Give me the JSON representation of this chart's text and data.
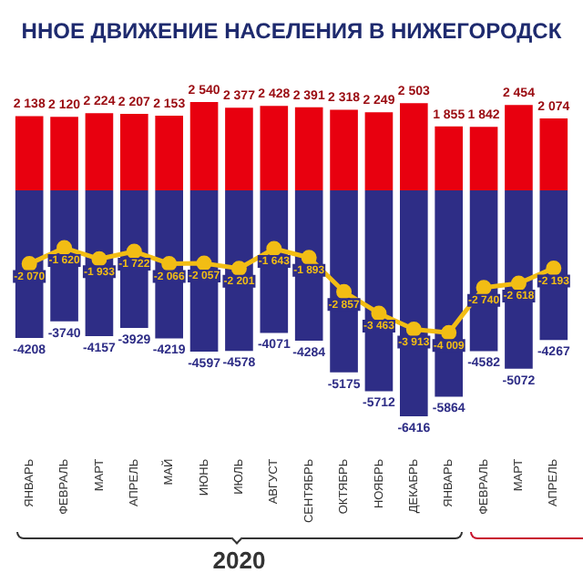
{
  "chart_data": {
    "type": "bar",
    "title": "ННОЕ ДВИЖЕНИЕ НАСЕЛЕНИЯ В НИЖЕГОРОДСК",
    "stacked": true,
    "grid": false,
    "legend": false,
    "tick_labels": "x",
    "marker": "circle",
    "categories": [
      "ЯНВАРЬ",
      "ФЕВРАЛЬ",
      "МАРТ",
      "АПРЕЛЬ",
      "МАЙ",
      "ИЮНЬ",
      "ИЮЛЬ",
      "АВГУСТ",
      "СЕНТЯБРЬ",
      "ОКТЯБРЬ",
      "НОЯБРЬ",
      "ДЕКАБРЬ",
      "ЯНВАРЬ",
      "ФЕВРАЛЬ",
      "МАРТ",
      "АПРЕЛЬ"
    ],
    "series": [
      {
        "type": "bar",
        "color": "#e8000f",
        "values": [
          2138,
          2120,
          2224,
          2207,
          2153,
          2540,
          2377,
          2428,
          2391,
          2318,
          2249,
          2503,
          1855,
          1842,
          2454,
          2074
        ],
        "value_labels": [
          "2 138",
          "2 120",
          "2 224",
          "2 207",
          "2 153",
          "2 540",
          "2 377",
          "2 428",
          "2 391",
          "2 318",
          "2 249",
          "2 503",
          "1 855",
          "1 842",
          "2 454",
          "2 074"
        ]
      },
      {
        "type": "bar",
        "color": "#2e2d86",
        "values": [
          -4208,
          -3740,
          -4157,
          -3929,
          -4219,
          -4597,
          -4578,
          -4071,
          -4284,
          -5175,
          -5712,
          -6416,
          -5864,
          -4582,
          -5072,
          -4267
        ],
        "value_labels": [
          "-4208",
          "-3740",
          "-4157",
          "-3929",
          "-4219",
          "-4597",
          "-4578",
          "-4071",
          "-4284",
          "-5175",
          "-5712",
          "-6416",
          "-5864",
          "-4582",
          "-5072",
          "-4267"
        ]
      },
      {
        "type": "line",
        "color": "#f2bd14",
        "values": [
          -2070,
          -1620,
          -1933,
          -1722,
          -2066,
          -2057,
          -2201,
          -1643,
          -1893,
          -2857,
          -3463,
          -3913,
          -4009,
          -2740,
          -2618,
          -2193
        ],
        "value_labels": [
          "-2 070",
          "-1 620",
          "-1 933",
          "-1 722",
          "-2 066",
          "-2 057",
          "-2 201",
          "-1 643",
          "-1 893",
          "-2 857",
          "-3 463",
          "-3 913",
          "-4 009",
          "-2 740",
          "-2 618",
          "-2 193"
        ]
      }
    ],
    "annotations": [
      "2020"
    ]
  }
}
